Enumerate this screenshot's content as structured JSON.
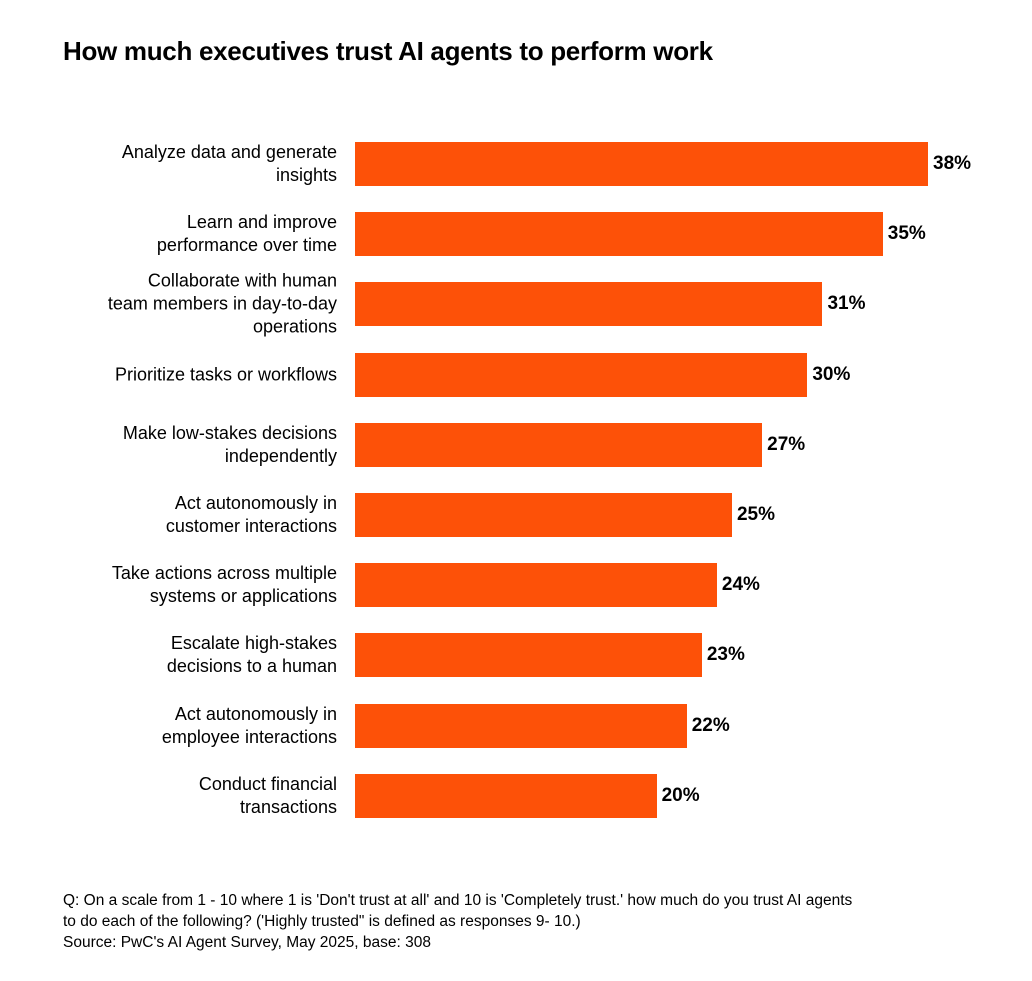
{
  "chart_data": {
    "type": "bar",
    "orientation": "horizontal",
    "title": "How much executives trust AI agents to perform work",
    "categories": [
      "Analyze data and generate\ninsights",
      "Learn and improve\nperformance over time",
      "Collaborate with human\nteam members in day-to-day\noperations",
      "Prioritize tasks or workflows",
      "Make low-stakes decisions\nindependently",
      "Act autonomously in\ncustomer interactions",
      "Take actions across multiple\nsystems or applications",
      "Escalate high-stakes\ndecisions to a human",
      "Act autonomously in\nemployee interactions",
      "Conduct financial\ntransactions"
    ],
    "values": [
      38,
      35,
      31,
      30,
      27,
      25,
      24,
      23,
      22,
      20
    ],
    "data_labels": [
      "38%",
      "35%",
      "31%",
      "30%",
      "27%",
      "25%",
      "24%",
      "23%",
      "22%",
      "20%"
    ],
    "unit": "%",
    "xlim": [
      0,
      38
    ],
    "grid": false,
    "bar_color": "#FD5108"
  },
  "footnote": {
    "question": "Q: On a scale from 1 - 10 where 1 is 'Don't trust at all' and 10 is 'Completely trust.' how much do you trust AI agents\nto do each of the following? ('Highly trusted\" is defined as responses 9- 10.)",
    "source": "Source: PwC's AI Agent Survey, May 2025, base: 308"
  }
}
